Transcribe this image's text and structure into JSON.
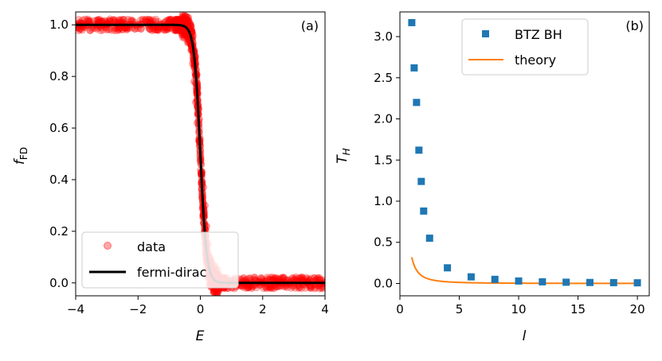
{
  "chart_data": [
    {
      "type": "scatter",
      "panel_label": "(a)",
      "xlabel": "E",
      "ylabel_main": "f",
      "ylabel_sub": "FD",
      "xlim": [
        -4,
        4
      ],
      "ylim": [
        -0.05,
        1.05
      ],
      "xticks": [
        -4,
        -2,
        0,
        2,
        4
      ],
      "xtick_labels": [
        "−4",
        "−2",
        "0",
        "2",
        "4"
      ],
      "yticks": [
        0.0,
        0.2,
        0.4,
        0.6,
        0.8,
        1.0
      ],
      "ytick_labels": [
        "0.0",
        "0.2",
        "0.4",
        "0.6",
        "0.8",
        "1.0"
      ],
      "legend_position": "lower-left",
      "series": [
        {
          "name": "data",
          "kind": "scatter",
          "color": "#ff0000",
          "description": "noisy samples scattered around the fermi-dirac curve",
          "x": [
            -4.0,
            -3.5,
            -3.0,
            -2.5,
            -2.0,
            -1.5,
            -1.0,
            -0.7,
            -0.5,
            -0.4,
            -0.3,
            -0.25,
            -0.2,
            -0.15,
            -0.1,
            -0.05,
            0.0,
            0.05,
            0.1,
            0.15,
            0.2,
            0.25,
            0.3,
            0.4,
            0.5,
            0.7,
            1.0,
            1.5,
            2.0,
            3.0,
            4.0
          ],
          "y": [
            1.0,
            1.0,
            1.0,
            1.0,
            1.0,
            1.0,
            0.995,
            0.99,
            0.97,
            0.95,
            0.92,
            0.85,
            0.78,
            0.7,
            0.62,
            0.55,
            0.5,
            0.43,
            0.37,
            0.3,
            0.22,
            0.15,
            0.1,
            0.05,
            0.02,
            0.005,
            0.0,
            0.0,
            0.0,
            0.0,
            0.0
          ]
        },
        {
          "name": "fermi-dirac",
          "kind": "line",
          "color": "#000000",
          "temperature": 0.1,
          "mu": 0.0,
          "x": [
            -4.0,
            4.0
          ]
        }
      ]
    },
    {
      "type": "scatter",
      "panel_label": "(b)",
      "xlabel": "l",
      "ylabel_main": "T",
      "ylabel_sub": "H",
      "xlim": [
        0,
        21
      ],
      "ylim": [
        -0.15,
        3.3
      ],
      "xticks": [
        0,
        5,
        10,
        15,
        20
      ],
      "xtick_labels": [
        "0",
        "5",
        "10",
        "15",
        "20"
      ],
      "yticks": [
        0.0,
        0.5,
        1.0,
        1.5,
        2.0,
        2.5,
        3.0
      ],
      "ytick_labels": [
        "0.0",
        "0.5",
        "1.0",
        "1.5",
        "2.0",
        "2.5",
        "3.0"
      ],
      "legend_position": "upper-center",
      "series": [
        {
          "name": "BTZ BH",
          "kind": "scatter",
          "color": "#1f77b4",
          "x": [
            1.0,
            1.2,
            1.4,
            1.6,
            1.8,
            2.0,
            2.5,
            4.0,
            6.0,
            8.0,
            10.0,
            12.0,
            14.0,
            16.0,
            18.0,
            20.0
          ],
          "y": [
            3.17,
            2.62,
            2.2,
            1.62,
            1.24,
            0.88,
            0.55,
            0.19,
            0.08,
            0.05,
            0.03,
            0.02,
            0.015,
            0.012,
            0.01,
            0.008
          ]
        },
        {
          "name": "theory",
          "kind": "line",
          "color": "#ff7f0e",
          "formula": "T = 1/(pi * l^2)",
          "x": [
            1.0,
            20.0
          ]
        }
      ]
    }
  ]
}
